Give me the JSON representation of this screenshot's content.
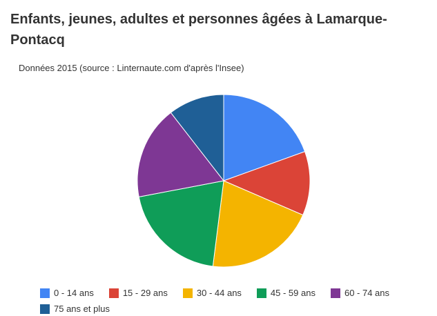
{
  "page": {
    "title": "Enfants, jeunes, adultes et personnes âgées à Lamarque-Pontacq",
    "subtitle": "Données 2015 (source : Linternaute.com d'après l'Insee)"
  },
  "chart_data": {
    "type": "pie",
    "title": "Enfants, jeunes, adultes et personnes âgées à Lamarque-Pontacq",
    "subtitle": "Données 2015 (source : Linternaute.com d'après l'Insee)",
    "legend_position": "bottom",
    "slices": [
      {
        "label": "0 - 14 ans",
        "value": 19.5,
        "color": "#4285f4"
      },
      {
        "label": "15 - 29 ans",
        "value": 12.0,
        "color": "#db4437"
      },
      {
        "label": "30 - 44 ans",
        "value": 20.5,
        "color": "#f4b400"
      },
      {
        "label": "45 - 59 ans",
        "value": 20.0,
        "color": "#0f9d58"
      },
      {
        "label": "60 - 74 ans",
        "value": 17.5,
        "color": "#7e3794"
      },
      {
        "label": "75 ans et plus",
        "value": 10.5,
        "color": "#1f5f96"
      }
    ]
  }
}
